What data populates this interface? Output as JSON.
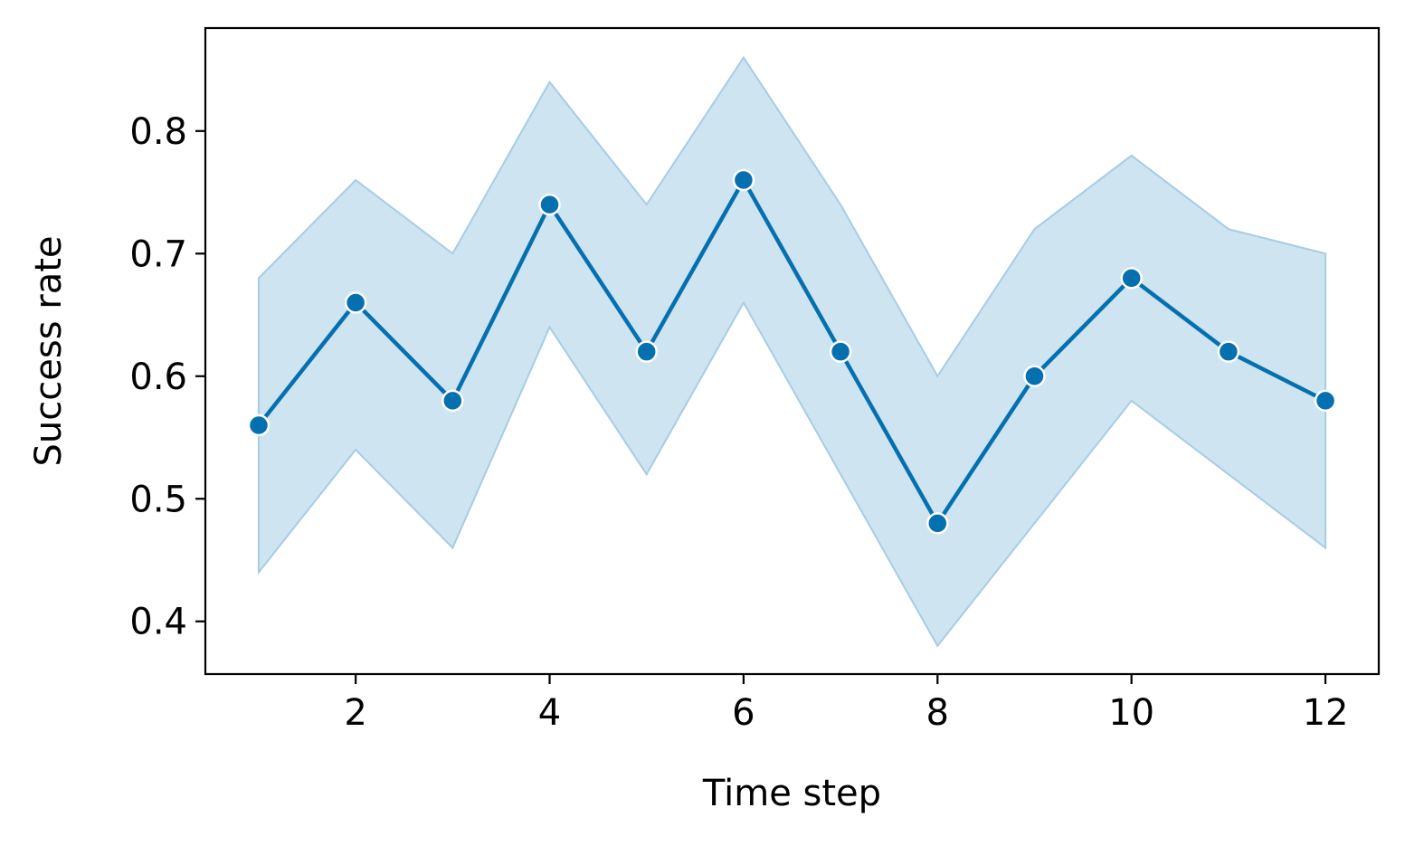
{
  "chart_data": {
    "type": "line",
    "title": "",
    "xlabel": "Time step",
    "ylabel": "Success rate",
    "xlim": [
      0.45,
      12.55
    ],
    "ylim": [
      0.357,
      0.884
    ],
    "xticks": [
      2,
      4,
      6,
      8,
      10,
      12
    ],
    "xtick_labels": [
      "2",
      "4",
      "6",
      "8",
      "10",
      "12"
    ],
    "yticks": [
      0.4,
      0.5,
      0.6,
      0.7,
      0.8
    ],
    "ytick_labels": [
      "0.4",
      "0.5",
      "0.6",
      "0.7",
      "0.8"
    ],
    "grid": false,
    "legend": "none",
    "series": [
      {
        "x": [
          1,
          2,
          3,
          4,
          5,
          6,
          7,
          8,
          9,
          10,
          11,
          12
        ],
        "values": [
          0.56,
          0.66,
          0.58,
          0.74,
          0.62,
          0.76,
          0.62,
          0.48,
          0.6,
          0.68,
          0.62,
          0.58
        ],
        "lower": [
          0.44,
          0.54,
          0.46,
          0.64,
          0.52,
          0.66,
          0.52,
          0.38,
          0.48,
          0.58,
          0.52,
          0.46
        ],
        "upper": [
          0.68,
          0.76,
          0.7,
          0.84,
          0.74,
          0.86,
          0.74,
          0.6,
          0.72,
          0.78,
          0.72,
          0.7
        ],
        "color": "#0570b0",
        "band_color": "#a6cde4"
      }
    ]
  }
}
